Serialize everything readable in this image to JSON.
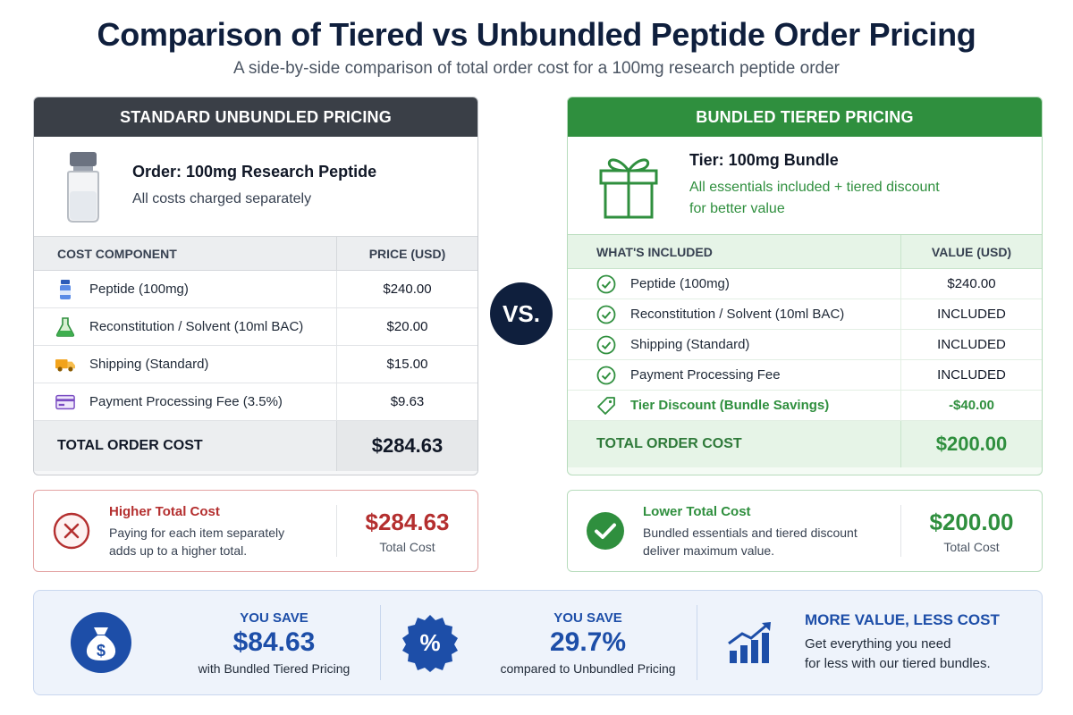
{
  "header": {
    "title": "Comparison of Tiered vs Unbundled Peptide Order Pricing",
    "subtitle": "A side-by-side comparison of total order cost for a 100mg research peptide order"
  },
  "colors": {
    "navy": "#0f1f3d",
    "green": "#2f8f3e",
    "red": "#b42f2f",
    "blue": "#1d4ea8",
    "dark_header": "#3a3f47"
  },
  "unbundled": {
    "heading": "STANDARD UNBUNDLED PRICING",
    "order_icon": "vial-icon",
    "order_title": "Order: 100mg Research Peptide",
    "order_sub": "All costs charged separately",
    "col_component": "COST COMPONENT",
    "col_price": "PRICE (USD)",
    "rows": [
      {
        "icon": "vial-icon",
        "label": "Peptide (100mg)",
        "price": "$240.00"
      },
      {
        "icon": "flask-icon",
        "label": "Reconstitution / Solvent (10ml BAC)",
        "price": "$20.00"
      },
      {
        "icon": "truck-icon",
        "label": "Shipping (Standard)",
        "price": "$15.00"
      },
      {
        "icon": "credit-card-icon",
        "label": "Payment Processing Fee (3.5%)",
        "price": "$9.63"
      }
    ],
    "total_label": "TOTAL ORDER COST",
    "total_value": "$284.63",
    "summary": {
      "heading": "Higher Total Cost",
      "line1": "Paying for each item separately",
      "line2": "adds up to a higher total.",
      "amount": "$284.63",
      "amount_label": "Total Cost"
    }
  },
  "vs_label": "VS.",
  "bundled": {
    "heading": "BUNDLED TIERED PRICING",
    "order_icon": "gift-icon",
    "order_title": "Tier: 100mg Bundle",
    "order_sub_1": "All essentials included + tiered discount",
    "order_sub_2": "for better value",
    "col_component": "WHAT'S INCLUDED",
    "col_price": "VALUE (USD)",
    "rows": [
      {
        "icon": "check-circle-icon",
        "label": "Peptide (100mg)",
        "price": "$240.00"
      },
      {
        "icon": "check-circle-icon",
        "label": "Reconstitution / Solvent (10ml BAC)",
        "price": "INCLUDED"
      },
      {
        "icon": "check-circle-icon",
        "label": "Shipping (Standard)",
        "price": "INCLUDED"
      },
      {
        "icon": "check-circle-icon",
        "label": "Payment Processing Fee",
        "price": "INCLUDED"
      },
      {
        "icon": "tag-icon",
        "label": "Tier Discount (Bundle Savings)",
        "price": "-$40.00"
      }
    ],
    "total_label": "TOTAL ORDER COST",
    "total_value": "$200.00",
    "summary": {
      "heading": "Lower Total Cost",
      "line1": "Bundled essentials and tiered discount",
      "line2": "deliver maximum value.",
      "amount": "$200.00",
      "amount_label": "Total Cost"
    }
  },
  "savings": {
    "block1": {
      "icon": "money-bag-icon",
      "heading": "YOU SAVE",
      "value": "$84.63",
      "caption": "with Bundled Tiered Pricing"
    },
    "block2": {
      "icon": "percent-badge-icon",
      "heading": "YOU SAVE",
      "value": "29.7%",
      "caption": "compared to Unbundled Pricing"
    },
    "block3": {
      "icon": "growth-chart-icon",
      "heading": "MORE VALUE, LESS COST",
      "line1": "Get everything you need",
      "line2": "for less with our tiered bundles."
    }
  }
}
